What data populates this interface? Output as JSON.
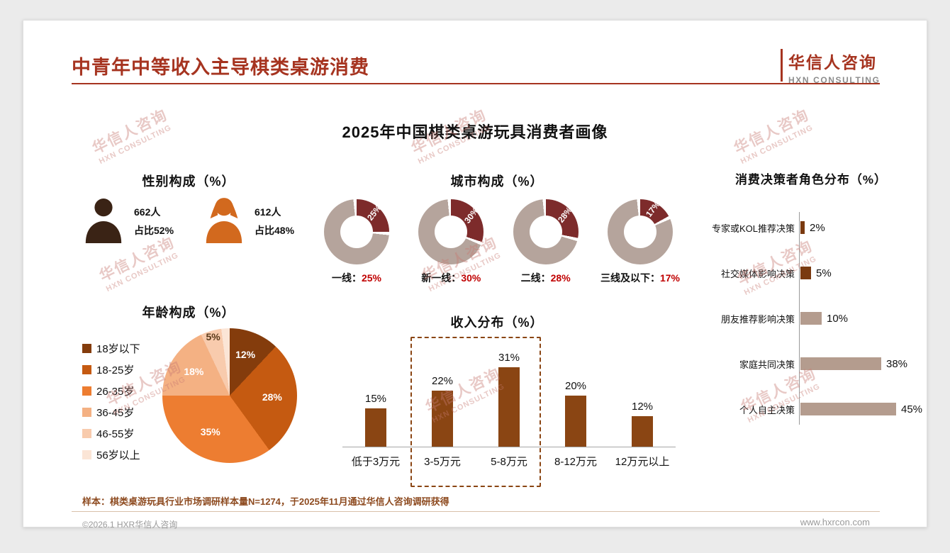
{
  "header": {
    "title": "中青年中等收入主导棋类桌游消费",
    "logo_cn": "华信人咨询",
    "logo_en": "HXN CONSULTING"
  },
  "subtitle": "2025年中国棋类桌游玩具消费者画像",
  "watermark": {
    "line1": "华信人咨询",
    "line2": "HXN CONSULTING"
  },
  "footer": {
    "note": "样本：棋类桌游玩具行业市场调研样本量N=1274，于2025年11月通过华信人咨询调研获得",
    "copyright": "©2026.1 HXR华信人咨询",
    "website": "www.hxrcon.com"
  },
  "chart_data": [
    {
      "id": "gender",
      "type": "icon-stat",
      "title": "性别构成（%）",
      "items": [
        {
          "label": "男",
          "count": "662人",
          "share": "占比52%",
          "color": "#3a2315"
        },
        {
          "label": "女",
          "count": "612人",
          "share": "占比48%",
          "color": "#d2691e"
        }
      ]
    },
    {
      "id": "city",
      "type": "donut",
      "title": "城市构成（%）",
      "slice_color": "#7d2b2b",
      "rest_color": "#b5a49c",
      "items": [
        {
          "label": "一线",
          "value": 25
        },
        {
          "label": "新一线",
          "value": 30
        },
        {
          "label": "二线",
          "value": 28
        },
        {
          "label": "三线及以下",
          "value": 17
        }
      ]
    },
    {
      "id": "age",
      "type": "pie",
      "title": "年龄构成（%）",
      "categories": [
        "18岁以下",
        "18-25岁",
        "26-35岁",
        "36-45岁",
        "46-55岁",
        "56岁以上"
      ],
      "values": [
        12,
        28,
        35,
        18,
        5,
        2
      ],
      "colors": [
        "#843c0c",
        "#c55a11",
        "#ed7d31",
        "#f4b183",
        "#f8cbad",
        "#fbe5d6"
      ],
      "label_colors": [
        "#ffffff",
        "#ffffff",
        "#ffffff",
        "#ffffff",
        "#5a3a1a",
        ""
      ],
      "show_labels": [
        true,
        true,
        true,
        true,
        true,
        false
      ]
    },
    {
      "id": "income",
      "type": "bar",
      "title": "收入分布（%）",
      "categories": [
        "低于3万元",
        "3-5万元",
        "5-8万元",
        "8-12万元",
        "12万元以上"
      ],
      "values": [
        15,
        22,
        31,
        20,
        12
      ],
      "bar_color": "#8a4513",
      "highlight_range": [
        1,
        2
      ]
    },
    {
      "id": "decision",
      "type": "hbar",
      "title": "消费决策者角色分布（%）",
      "categories": [
        "专家或KOL推荐决策",
        "社交媒体影响决策",
        "朋友推荐影响决策",
        "家庭共同决策",
        "个人自主决策"
      ],
      "values": [
        2,
        5,
        10,
        38,
        45
      ],
      "colors": [
        "#7a3a10",
        "#7a3a10",
        "#b49c8e",
        "#b49c8e",
        "#b49c8e"
      ]
    }
  ]
}
